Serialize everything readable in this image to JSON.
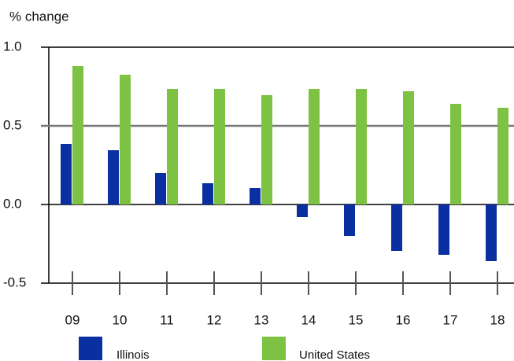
{
  "chart_data": {
    "type": "bar",
    "y_label": "% change",
    "categories": [
      "09",
      "10",
      "11",
      "12",
      "13",
      "14",
      "15",
      "16",
      "17",
      "18"
    ],
    "series": [
      {
        "name": "Illinois",
        "color": "#0a2fa0",
        "values": [
          0.385,
          0.345,
          0.2,
          0.135,
          0.105,
          -0.08,
          -0.2,
          -0.295,
          -0.32,
          -0.36
        ]
      },
      {
        "name": "United States",
        "color": "#7dc242",
        "values": [
          0.88,
          0.825,
          0.735,
          0.735,
          0.695,
          0.735,
          0.735,
          0.72,
          0.64,
          0.615
        ]
      }
    ],
    "ylim": [
      -0.5,
      1.0
    ],
    "yticks": [
      {
        "value": 1.0,
        "label": "1.0"
      },
      0.5,
      {
        "value": 0.0,
        "label": "0.0"
      },
      -0.5
    ],
    "grid": true
  }
}
